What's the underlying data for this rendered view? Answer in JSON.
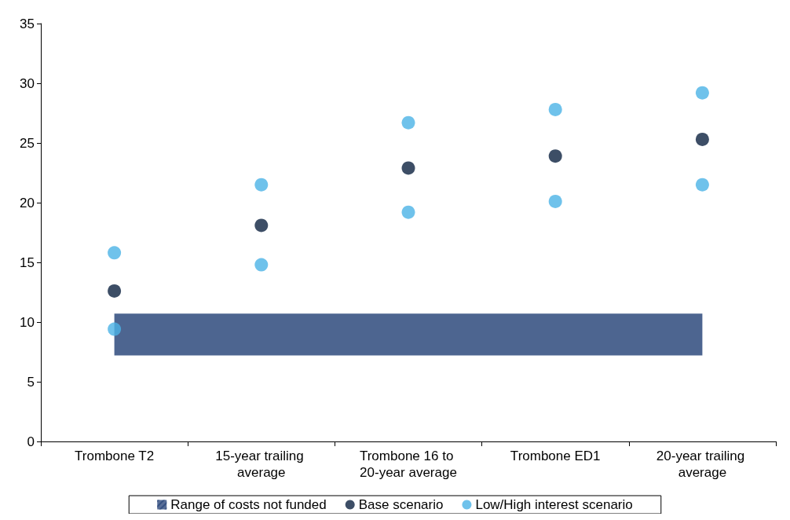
{
  "chart_data": {
    "type": "scatter",
    "categories": [
      "Trombone T2",
      "15-year trailing average",
      "Trombone 16 to 20-year average",
      "Trombone ED1",
      "20-year trailing average"
    ],
    "series": [
      {
        "name": "Base scenario",
        "color": "#0d2240",
        "values": [
          12.6,
          18.1,
          22.9,
          23.9,
          25.3
        ]
      },
      {
        "name": "Low/High interest scenario",
        "color": "#4bb3e6",
        "values": [
          15.8,
          21.5,
          26.7,
          27.8,
          29.2
        ]
      },
      {
        "color": "#4bb3e6",
        "values": [
          9.4,
          14.8,
          19.2,
          20.1,
          21.5
        ]
      }
    ],
    "bands": [
      {
        "axis": "y",
        "from": 7.2,
        "to": 10.7,
        "label": "Range of costs not funded",
        "color": "#2e4a7d"
      }
    ],
    "ylim": [
      0,
      35
    ],
    "yticks": [
      0,
      5,
      10,
      15,
      20,
      25,
      30,
      35
    ],
    "grid": false,
    "legend": "bottom",
    "marker": "circle"
  }
}
